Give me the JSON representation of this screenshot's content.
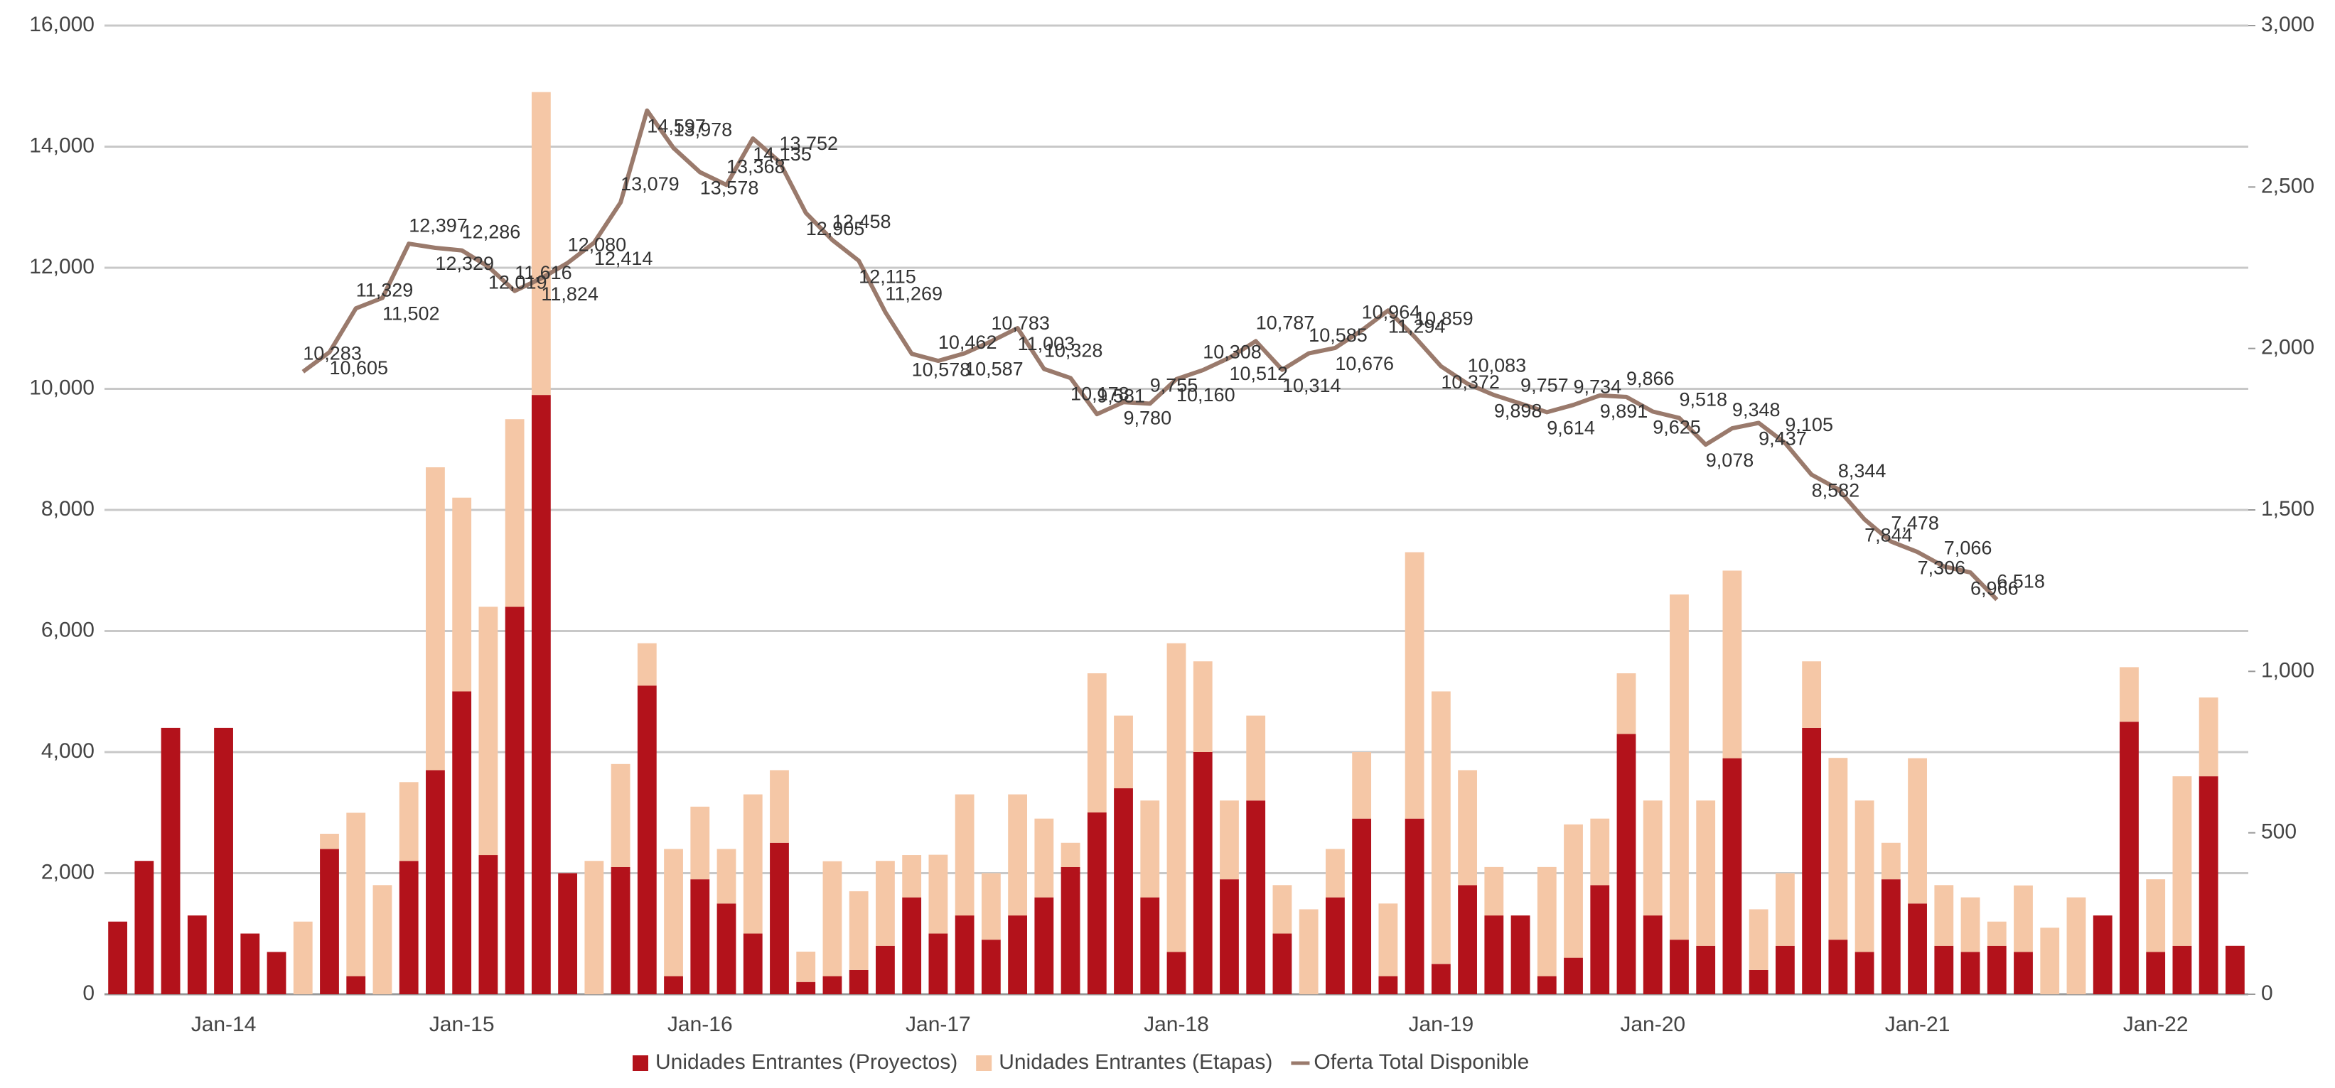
{
  "chart_data": {
    "type": "bar",
    "categories": [
      null,
      null,
      null,
      null,
      "Jan-14",
      null,
      null,
      null,
      null,
      null,
      null,
      null,
      null,
      "Jan-15",
      null,
      null,
      null,
      null,
      null,
      null,
      null,
      null,
      "Jan-16",
      null,
      null,
      null,
      null,
      null,
      null,
      null,
      null,
      "Jan-17",
      null,
      null,
      null,
      null,
      null,
      null,
      null,
      null,
      "Jan-18",
      null,
      null,
      null,
      null,
      null,
      null,
      null,
      null,
      null,
      "Jan-19",
      null,
      null,
      null,
      null,
      null,
      null,
      null,
      "Jan-20",
      null,
      null,
      null,
      null,
      null,
      null,
      null,
      null,
      null,
      "Jan-21",
      null,
      null,
      null,
      null,
      null,
      null,
      null,
      null,
      "Jan-22",
      null,
      null,
      null
    ],
    "series": [
      {
        "name": "Unidades Entrantes (Proyectos)",
        "color": "#b3121b",
        "axis": "y2",
        "values": [
          225,
          413,
          825,
          244,
          825,
          188,
          131,
          0,
          450,
          56,
          0,
          413,
          694,
          938,
          431,
          1200,
          1856,
          375,
          0,
          394,
          956,
          56,
          356,
          281,
          188,
          469,
          38,
          56,
          75,
          150,
          300,
          188,
          244,
          169,
          244,
          300,
          394,
          563,
          638,
          300,
          131,
          750,
          356,
          600,
          188,
          0,
          300,
          544,
          56,
          544,
          94,
          338,
          244,
          244,
          56,
          113,
          338,
          806,
          244,
          169,
          150,
          731,
          75,
          150,
          825,
          169,
          131,
          356,
          281,
          150,
          131,
          150,
          131,
          0,
          0,
          244,
          844,
          131,
          150,
          675,
          150
        ]
      },
      {
        "name": "Unidades Entrantes (Etapas)",
        "color": "#f5c7a6",
        "axis": "y2",
        "values": [
          0,
          0,
          0,
          0,
          0,
          0,
          0,
          225,
          47,
          506,
          338,
          244,
          938,
          600,
          769,
          581,
          938,
          0,
          413,
          319,
          131,
          394,
          225,
          169,
          431,
          225,
          94,
          356,
          244,
          263,
          131,
          244,
          375,
          206,
          375,
          244,
          75,
          431,
          225,
          300,
          956,
          281,
          244,
          263,
          150,
          263,
          150,
          206,
          225,
          825,
          844,
          356,
          150,
          0,
          338,
          413,
          206,
          188,
          356,
          1069,
          450,
          581,
          188,
          225,
          206,
          563,
          469,
          113,
          450,
          188,
          169,
          75,
          206,
          206,
          300,
          0,
          169,
          225,
          525,
          244,
          0
        ]
      },
      {
        "name": "Oferta Total Disponible",
        "color": "#9a7a6c",
        "type": "line",
        "values": [
          null,
          null,
          null,
          null,
          null,
          null,
          null,
          10283,
          10605,
          11329,
          11502,
          12397,
          12329,
          12286,
          12019,
          11616,
          11824,
          12080,
          12414,
          13079,
          14597,
          13978,
          13578,
          13368,
          14135,
          13752,
          12905,
          12458,
          12115,
          11269,
          10578,
          10462,
          10587,
          10783,
          11003,
          10328,
          10178,
          9581,
          9780,
          9755,
          10160,
          10308,
          10512,
          10787,
          10314,
          10585,
          10676,
          10964,
          11294,
          10859,
          10372,
          10083,
          9898,
          9757,
          9614,
          9734,
          9891,
          9866,
          9625,
          9518,
          9078,
          9348,
          9437,
          9105,
          8582,
          8344,
          7844,
          7478,
          7306,
          7066,
          6966,
          6518,
          null,
          null,
          null,
          null,
          null,
          null,
          null,
          null,
          null
        ],
        "value_labels": [
          null,
          null,
          null,
          null,
          null,
          null,
          null,
          "10,283",
          "10,605",
          "11,329",
          "11,502",
          "12,397",
          "12,329",
          "12,286",
          "12,019",
          "11,616",
          "11,824",
          "12,080",
          "12,414",
          "13,079",
          "14,597",
          "13,978",
          "13,578",
          "13,368",
          "14,135",
          "13,752",
          "12,905",
          "12,458",
          "12,115",
          "11,269",
          "10,578",
          "10,462",
          "10,587",
          "10,783",
          "11,003",
          "10,328",
          "10,178",
          "9,581",
          "9,780",
          "9,755",
          "10,160",
          "10,308",
          "10,512",
          "10,787",
          "10,314",
          "10,585",
          "10,676",
          "10,964",
          "11,294",
          "10,859",
          "10,372",
          "10,083",
          "9,898",
          "9,757",
          "9,614",
          "9,734",
          "9,891",
          "9,866",
          "9,625",
          "9,518",
          "9,078",
          "9,348",
          "9,437",
          "9,105",
          "8,582",
          "8,344",
          "7,844",
          "7,478",
          "7,306",
          "7,066",
          "6,966",
          "6,518",
          null,
          null,
          null,
          null,
          null,
          null,
          null,
          null,
          null
        ]
      }
    ],
    "ylim": [
      0,
      16000
    ],
    "yticks": [
      0,
      {
        "value": 2000,
        "label": "2,000"
      },
      {
        "value": 4000,
        "label": "4,000"
      },
      {
        "value": 6000,
        "label": "6,000"
      },
      {
        "value": 8000,
        "label": "8,000"
      },
      {
        "value": 10000,
        "label": "10,000"
      },
      {
        "value": 12000,
        "label": "12,000"
      },
      {
        "value": 14000,
        "label": "14,000"
      },
      {
        "value": 16000,
        "label": "16,000"
      }
    ],
    "y2lim": [
      0,
      3000
    ],
    "y2ticks": [
      0,
      500,
      {
        "value": 1000,
        "label": "1,000"
      },
      {
        "value": 1500,
        "label": "1,500"
      },
      {
        "value": 2000,
        "label": "2,000"
      },
      {
        "value": 2500,
        "label": "2,500"
      },
      {
        "value": 3000,
        "label": "3,000"
      }
    ],
    "grid": true,
    "legend": "bottom"
  }
}
